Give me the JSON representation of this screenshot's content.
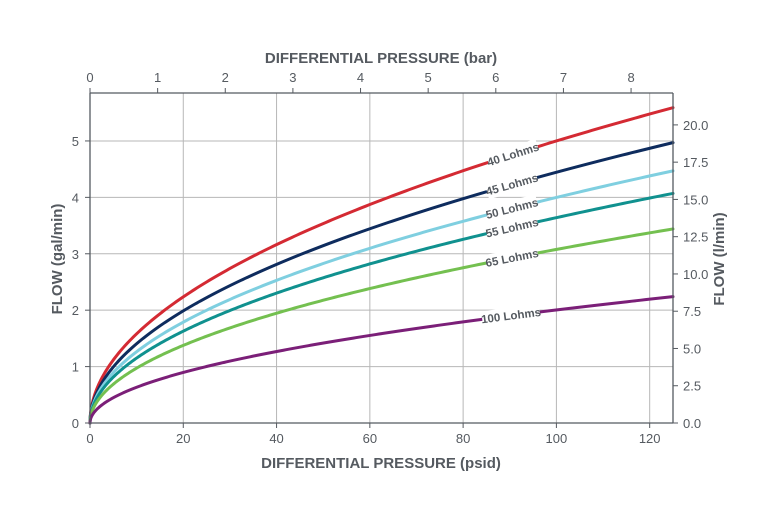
{
  "chart_data": {
    "type": "line",
    "title": "",
    "xlabel": "DIFFERENTIAL PRESSURE (psid)",
    "xlabel_top": "DIFFERENTIAL PRESSURE (bar)",
    "ylabel": "FLOW (gal/min)",
    "ylabel_right": "FLOW (l/min)",
    "xlim": [
      0,
      125
    ],
    "ylim": [
      0,
      5.85
    ],
    "xlim_top": [
      0,
      8.62
    ],
    "ylim_right": [
      0,
      22.14
    ],
    "x_ticks": [
      "0",
      "20",
      "40",
      "60",
      "80",
      "100",
      "120"
    ],
    "y_ticks": [
      "0",
      "1",
      "2",
      "3",
      "4",
      "5"
    ],
    "x_top_ticks": [
      "0",
      "1",
      "2",
      "3",
      "4",
      "5",
      "6",
      "7",
      "8"
    ],
    "y_right_ticks": [
      "0.0",
      "2.5",
      "5.0",
      "7.5",
      "10.0",
      "12.5",
      "15.0",
      "17.5",
      "20.0"
    ],
    "grid": true,
    "legend": "inline labels on curves",
    "series": [
      {
        "name": "40 Lohms",
        "color": "#d42a33",
        "x": [
          0,
          1,
          5,
          10,
          20,
          40,
          60,
          80,
          100,
          120,
          125
        ],
        "y": [
          0,
          0.5,
          1.12,
          1.58,
          2.24,
          3.16,
          3.87,
          4.47,
          5.0,
          5.48,
          5.59
        ]
      },
      {
        "name": "45 Lohms",
        "color": "#0e2c5e",
        "x": [
          0,
          1,
          5,
          10,
          20,
          40,
          60,
          80,
          100,
          120,
          125
        ],
        "y": [
          0,
          0.44,
          0.99,
          1.41,
          1.99,
          2.81,
          3.44,
          3.98,
          4.44,
          4.87,
          4.97
        ]
      },
      {
        "name": "50 Lohms",
        "color": "#7fcfe0",
        "x": [
          0,
          1,
          5,
          10,
          20,
          40,
          60,
          80,
          100,
          120,
          125
        ],
        "y": [
          0,
          0.4,
          0.89,
          1.26,
          1.79,
          2.53,
          3.1,
          3.58,
          4.0,
          4.38,
          4.47
        ]
      },
      {
        "name": "55 Lohms",
        "color": "#10918f",
        "x": [
          0,
          1,
          5,
          10,
          20,
          40,
          60,
          80,
          100,
          120,
          125
        ],
        "y": [
          0,
          0.36,
          0.81,
          1.15,
          1.63,
          2.3,
          2.82,
          3.25,
          3.64,
          3.98,
          4.07
        ]
      },
      {
        "name": "65 Lohms",
        "color": "#74c050",
        "x": [
          0,
          1,
          5,
          10,
          20,
          40,
          60,
          80,
          100,
          120,
          125
        ],
        "y": [
          0,
          0.31,
          0.69,
          0.97,
          1.38,
          1.95,
          2.38,
          2.75,
          3.08,
          3.37,
          3.44
        ]
      },
      {
        "name": "100 Lohms",
        "color": "#7b1f78",
        "x": [
          0,
          1,
          5,
          10,
          20,
          40,
          60,
          80,
          100,
          120,
          125
        ],
        "y": [
          0,
          0.2,
          0.45,
          0.63,
          0.89,
          1.26,
          1.55,
          1.79,
          2.0,
          2.19,
          2.24
        ]
      }
    ]
  }
}
